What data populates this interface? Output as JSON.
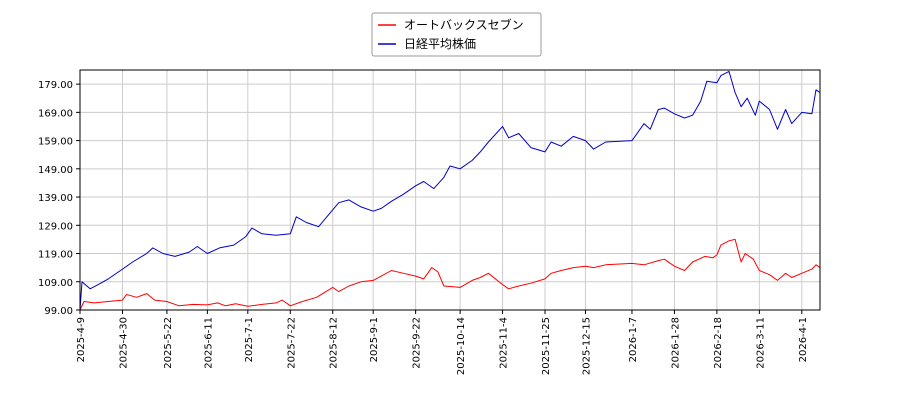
{
  "chart_data": {
    "type": "line",
    "legend": {
      "placement": "top-center"
    },
    "grid": true,
    "ylim": [
      99.0,
      184.0
    ],
    "xlim": [
      "2025-04-09",
      "2026-04-10"
    ],
    "y_ticks": [
      "99.00",
      "109.00",
      "119.00",
      "129.00",
      "139.00",
      "149.00",
      "159.00",
      "169.00",
      "179.00"
    ],
    "x_ticks": [
      "2025-4-9",
      "2025-4-30",
      "2025-5-22",
      "2025-6-11",
      "2025-7-1",
      "2025-7-22",
      "2025-8-12",
      "2025-9-1",
      "2025-9-22",
      "2025-10-14",
      "2025-11-4",
      "2025-11-25",
      "2025-12-15",
      "2026-1-7",
      "2026-1-28",
      "2026-2-18",
      "2026-3-11",
      "2026-4-1"
    ],
    "series": [
      {
        "name": "オートバックスセブン",
        "color": "#ff0000",
        "points": [
          [
            "2025-04-09",
            99.0
          ],
          [
            "2025-04-11",
            102.0
          ],
          [
            "2025-04-16",
            101.5
          ],
          [
            "2025-04-23",
            102.0
          ],
          [
            "2025-04-30",
            102.5
          ],
          [
            "2025-05-02",
            104.5
          ],
          [
            "2025-05-07",
            103.5
          ],
          [
            "2025-05-12",
            104.8
          ],
          [
            "2025-05-16",
            102.5
          ],
          [
            "2025-05-22",
            102.0
          ],
          [
            "2025-05-28",
            100.5
          ],
          [
            "2025-06-04",
            101.0
          ],
          [
            "2025-06-11",
            100.8
          ],
          [
            "2025-06-16",
            101.5
          ],
          [
            "2025-06-20",
            100.5
          ],
          [
            "2025-06-25",
            101.2
          ],
          [
            "2025-07-01",
            100.3
          ],
          [
            "2025-07-08",
            101.0
          ],
          [
            "2025-07-15",
            101.5
          ],
          [
            "2025-07-18",
            102.5
          ],
          [
            "2025-07-22",
            100.5
          ],
          [
            "2025-07-28",
            102.0
          ],
          [
            "2025-08-04",
            103.5
          ],
          [
            "2025-08-12",
            107.0
          ],
          [
            "2025-08-15",
            105.5
          ],
          [
            "2025-08-20",
            107.5
          ],
          [
            "2025-08-26",
            109.0
          ],
          [
            "2025-09-01",
            109.5
          ],
          [
            "2025-09-05",
            111.0
          ],
          [
            "2025-09-10",
            113.0
          ],
          [
            "2025-09-16",
            112.0
          ],
          [
            "2025-09-22",
            111.0
          ],
          [
            "2025-09-26",
            110.0
          ],
          [
            "2025-09-30",
            114.0
          ],
          [
            "2025-10-03",
            112.5
          ],
          [
            "2025-10-06",
            107.5
          ],
          [
            "2025-10-14",
            107.0
          ],
          [
            "2025-10-20",
            109.5
          ],
          [
            "2025-10-24",
            110.5
          ],
          [
            "2025-10-28",
            112.0
          ],
          [
            "2025-11-04",
            108.0
          ],
          [
            "2025-11-07",
            106.5
          ],
          [
            "2025-11-12",
            107.5
          ],
          [
            "2025-11-18",
            108.5
          ],
          [
            "2025-11-25",
            110.0
          ],
          [
            "2025-11-28",
            112.0
          ],
          [
            "2025-12-03",
            113.0
          ],
          [
            "2025-12-09",
            114.0
          ],
          [
            "2025-12-15",
            114.5
          ],
          [
            "2025-12-19",
            114.0
          ],
          [
            "2025-12-25",
            115.0
          ],
          [
            "2026-01-07",
            115.5
          ],
          [
            "2026-01-13",
            115.0
          ],
          [
            "2026-01-20",
            116.5
          ],
          [
            "2026-01-23",
            117.0
          ],
          [
            "2026-01-28",
            114.5
          ],
          [
            "2026-02-02",
            113.0
          ],
          [
            "2026-02-06",
            116.0
          ],
          [
            "2026-02-12",
            118.0
          ],
          [
            "2026-02-16",
            117.5
          ],
          [
            "2026-02-18",
            118.5
          ],
          [
            "2026-02-20",
            122.0
          ],
          [
            "2026-02-24",
            123.5
          ],
          [
            "2026-02-27",
            124.0
          ],
          [
            "2026-03-02",
            116.0
          ],
          [
            "2026-03-04",
            119.0
          ],
          [
            "2026-03-08",
            117.0
          ],
          [
            "2026-03-11",
            113.0
          ],
          [
            "2026-03-16",
            111.5
          ],
          [
            "2026-03-20",
            109.5
          ],
          [
            "2026-03-24",
            112.0
          ],
          [
            "2026-03-27",
            110.5
          ],
          [
            "2026-04-01",
            112.0
          ],
          [
            "2026-04-06",
            113.5
          ],
          [
            "2026-04-08",
            115.0
          ],
          [
            "2026-04-10",
            114.0
          ]
        ]
      },
      {
        "name": "日経平均株価",
        "color": "#0000cc",
        "points": [
          [
            "2025-04-09",
            99.0
          ],
          [
            "2025-04-10",
            109.0
          ],
          [
            "2025-04-14",
            106.5
          ],
          [
            "2025-04-18",
            108.0
          ],
          [
            "2025-04-23",
            110.0
          ],
          [
            "2025-04-30",
            113.5
          ],
          [
            "2025-05-05",
            116.0
          ],
          [
            "2025-05-12",
            119.0
          ],
          [
            "2025-05-15",
            121.0
          ],
          [
            "2025-05-20",
            119.0
          ],
          [
            "2025-05-26",
            118.0
          ],
          [
            "2025-06-02",
            119.5
          ],
          [
            "2025-06-06",
            121.5
          ],
          [
            "2025-06-11",
            119.0
          ],
          [
            "2025-06-17",
            121.0
          ],
          [
            "2025-06-24",
            122.0
          ],
          [
            "2025-06-30",
            125.0
          ],
          [
            "2025-07-03",
            128.0
          ],
          [
            "2025-07-08",
            126.0
          ],
          [
            "2025-07-15",
            125.5
          ],
          [
            "2025-07-22",
            126.0
          ],
          [
            "2025-07-25",
            132.0
          ],
          [
            "2025-07-30",
            130.0
          ],
          [
            "2025-08-05",
            128.5
          ],
          [
            "2025-08-12",
            134.5
          ],
          [
            "2025-08-15",
            137.0
          ],
          [
            "2025-08-20",
            138.0
          ],
          [
            "2025-08-26",
            135.5
          ],
          [
            "2025-09-01",
            134.0
          ],
          [
            "2025-09-05",
            135.0
          ],
          [
            "2025-09-10",
            137.5
          ],
          [
            "2025-09-16",
            140.0
          ],
          [
            "2025-09-22",
            143.0
          ],
          [
            "2025-09-26",
            144.5
          ],
          [
            "2025-10-01",
            142.0
          ],
          [
            "2025-10-06",
            146.0
          ],
          [
            "2025-10-09",
            150.0
          ],
          [
            "2025-10-14",
            149.0
          ],
          [
            "2025-10-20",
            152.0
          ],
          [
            "2025-10-24",
            155.0
          ],
          [
            "2025-10-28",
            158.5
          ],
          [
            "2025-11-04",
            164.0
          ],
          [
            "2025-11-07",
            160.0
          ],
          [
            "2025-11-12",
            161.5
          ],
          [
            "2025-11-18",
            156.5
          ],
          [
            "2025-11-25",
            155.0
          ],
          [
            "2025-11-28",
            158.5
          ],
          [
            "2025-12-03",
            157.0
          ],
          [
            "2025-12-09",
            160.5
          ],
          [
            "2025-12-15",
            159.0
          ],
          [
            "2025-12-19",
            156.0
          ],
          [
            "2025-12-25",
            158.5
          ],
          [
            "2026-01-07",
            159.0
          ],
          [
            "2026-01-13",
            165.0
          ],
          [
            "2026-01-16",
            163.0
          ],
          [
            "2026-01-20",
            170.0
          ],
          [
            "2026-01-23",
            170.5
          ],
          [
            "2026-01-28",
            168.5
          ],
          [
            "2026-02-02",
            167.0
          ],
          [
            "2026-02-06",
            168.0
          ],
          [
            "2026-02-10",
            173.0
          ],
          [
            "2026-02-13",
            180.0
          ],
          [
            "2026-02-18",
            179.5
          ],
          [
            "2026-02-20",
            182.0
          ],
          [
            "2026-02-24",
            183.5
          ],
          [
            "2026-02-27",
            176.0
          ],
          [
            "2026-03-02",
            171.0
          ],
          [
            "2026-03-05",
            174.0
          ],
          [
            "2026-03-09",
            168.0
          ],
          [
            "2026-03-11",
            173.0
          ],
          [
            "2026-03-16",
            170.0
          ],
          [
            "2026-03-20",
            163.0
          ],
          [
            "2026-03-24",
            170.0
          ],
          [
            "2026-03-27",
            165.0
          ],
          [
            "2026-04-01",
            169.0
          ],
          [
            "2026-04-06",
            168.5
          ],
          [
            "2026-04-08",
            177.0
          ],
          [
            "2026-04-10",
            176.0
          ]
        ]
      }
    ]
  }
}
